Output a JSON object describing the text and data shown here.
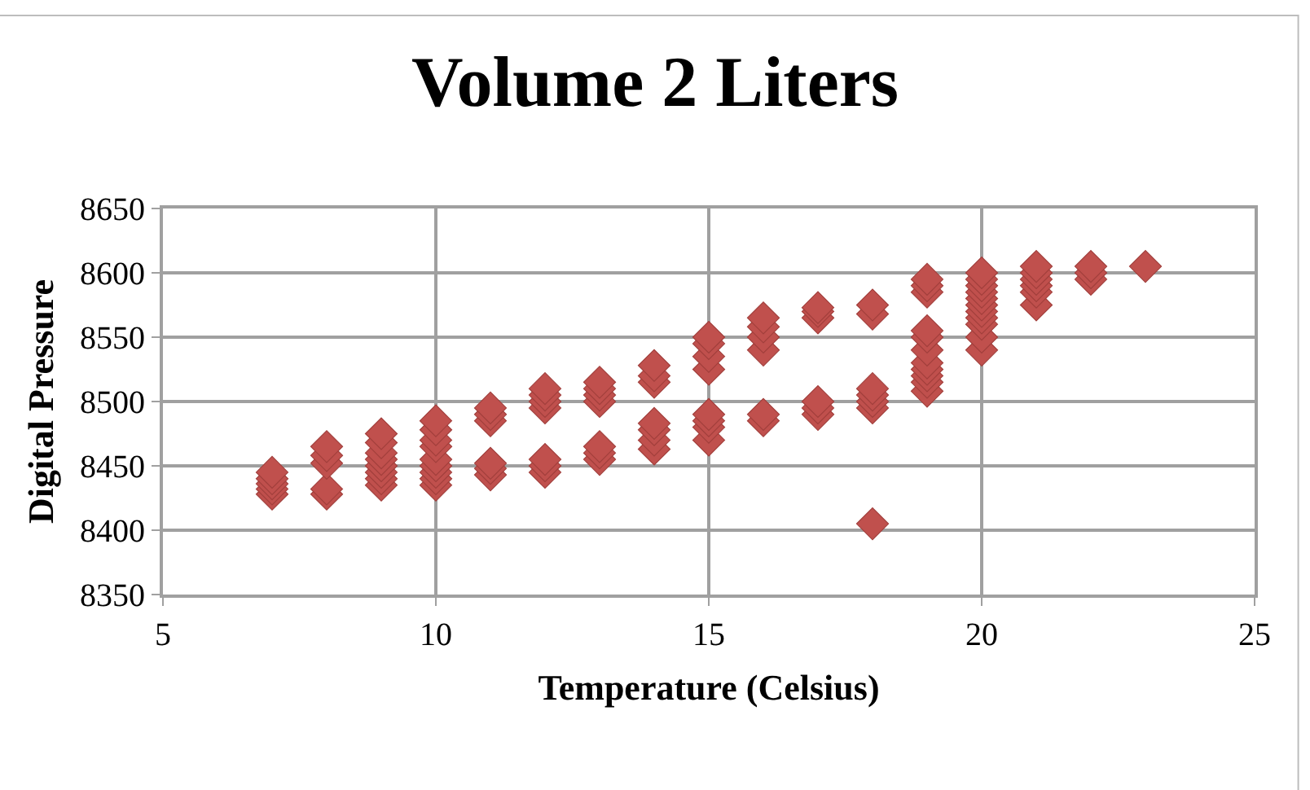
{
  "chart_data": {
    "type": "scatter",
    "title": "Volume 2 Liters",
    "xlabel": "Temperature (Celsius)",
    "ylabel": "Digital Pressure",
    "xlim": [
      5,
      25
    ],
    "xticks": [
      5,
      10,
      15,
      20,
      25
    ],
    "ylim": [
      8350,
      8650
    ],
    "yticks": [
      8350,
      8400,
      8450,
      8500,
      8550,
      8600,
      8650
    ],
    "grid": true,
    "marker": "diamond",
    "series": [
      {
        "color": "#c0504d",
        "x": [
          7,
          7,
          7,
          7,
          7,
          8,
          8,
          8,
          8,
          8,
          9,
          9,
          9,
          9,
          9,
          9,
          9,
          9,
          10,
          10,
          10,
          10,
          10,
          10,
          10,
          10,
          10,
          11,
          11,
          11,
          11,
          11,
          11,
          12,
          12,
          12,
          12,
          12,
          12,
          12,
          13,
          13,
          13,
          13,
          13,
          13,
          13,
          14,
          14,
          14,
          14,
          14,
          14,
          14,
          15,
          15,
          15,
          15,
          15,
          15,
          15,
          15,
          16,
          16,
          16,
          16,
          16,
          16,
          17,
          17,
          17,
          17,
          17,
          17,
          18,
          18,
          18,
          18,
          18,
          18,
          18,
          19,
          19,
          19,
          19,
          19,
          19,
          19,
          19,
          19,
          19,
          19,
          20,
          20,
          20,
          20,
          20,
          20,
          20,
          20,
          20,
          20,
          20,
          21,
          21,
          21,
          21,
          21,
          21,
          22,
          22,
          22,
          23
        ],
        "values": [
          8428,
          8432,
          8436,
          8440,
          8445,
          8428,
          8432,
          8452,
          8458,
          8465,
          8435,
          8440,
          8445,
          8450,
          8455,
          8460,
          8468,
          8475,
          8435,
          8440,
          8445,
          8450,
          8455,
          8465,
          8470,
          8478,
          8485,
          8443,
          8448,
          8452,
          8485,
          8490,
          8495,
          8445,
          8450,
          8455,
          8495,
          8500,
          8505,
          8510,
          8455,
          8460,
          8465,
          8500,
          8505,
          8510,
          8515,
          8463,
          8470,
          8478,
          8483,
          8515,
          8520,
          8528,
          8470,
          8480,
          8485,
          8490,
          8525,
          8535,
          8545,
          8550,
          8485,
          8490,
          8540,
          8550,
          8558,
          8565,
          8490,
          8495,
          8500,
          8565,
          8570,
          8573,
          8405,
          8495,
          8500,
          8505,
          8510,
          8568,
          8575,
          8508,
          8515,
          8520,
          8525,
          8530,
          8540,
          8550,
          8555,
          8585,
          8590,
          8595,
          8540,
          8550,
          8560,
          8565,
          8570,
          8575,
          8580,
          8585,
          8590,
          8595,
          8600,
          8575,
          8585,
          8590,
          8595,
          8600,
          8605,
          8595,
          8600,
          8605,
          8605
        ]
      }
    ]
  }
}
